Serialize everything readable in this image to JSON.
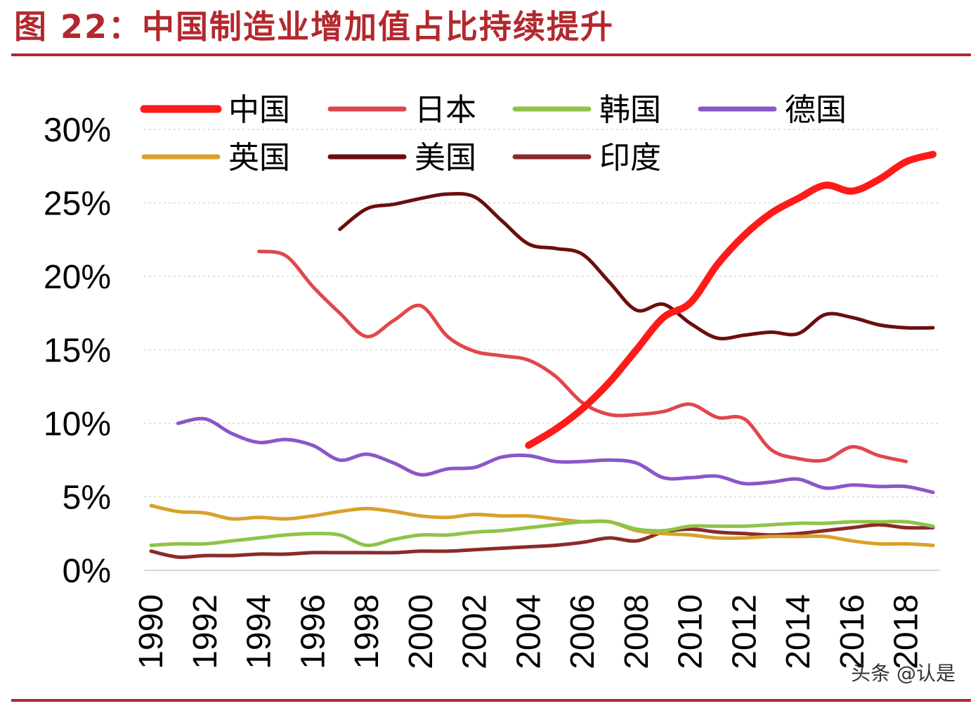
{
  "title": "图 22：中国制造业增加值占比持续提升",
  "watermark": "头条 @认是",
  "colors": {
    "title": "#b3282e",
    "rule": "#b3282e",
    "grid": "#d9d9d9",
    "axis": "#d9d9d9"
  },
  "chart_data": {
    "type": "line",
    "x_ticks": [
      "1990",
      "1992",
      "1994",
      "1996",
      "1998",
      "2000",
      "2002",
      "2004",
      "2006",
      "2008",
      "2010",
      "2012",
      "2014",
      "2016",
      "2018"
    ],
    "y_ticks": [
      "0%",
      "5%",
      "10%",
      "15%",
      "20%",
      "25%",
      "30%"
    ],
    "ylim": [
      0,
      30
    ],
    "xlim": [
      1990,
      2019
    ],
    "grid": "horizontal dotted",
    "legend_placement": "top",
    "series": [
      {
        "name": "中国",
        "color": "#ff1a1a",
        "width": 10,
        "x": [
          2004,
          2005,
          2006,
          2007,
          2008,
          2009,
          2010,
          2011,
          2012,
          2013,
          2014,
          2015,
          2016,
          2017,
          2018,
          2019
        ],
        "y": [
          8.5,
          9.6,
          11.0,
          12.8,
          15.0,
          17.2,
          18.2,
          20.8,
          22.8,
          24.3,
          25.3,
          26.2,
          25.8,
          26.6,
          27.8,
          28.3
        ]
      },
      {
        "name": "日本",
        "color": "#e0474c",
        "width": 5,
        "x": [
          1994,
          1995,
          1996,
          1997,
          1998,
          1999,
          2000,
          2001,
          2002,
          2003,
          2004,
          2005,
          2006,
          2007,
          2008,
          2009,
          2010,
          2011,
          2012,
          2013,
          2014,
          2015,
          2016,
          2017,
          2018
        ],
        "y": [
          21.7,
          21.4,
          19.3,
          17.5,
          15.9,
          17.0,
          18.0,
          15.9,
          14.9,
          14.6,
          14.3,
          13.2,
          11.4,
          10.6,
          10.6,
          10.8,
          11.3,
          10.4,
          10.3,
          8.2,
          7.6,
          7.5,
          8.4,
          7.8,
          7.4
        ]
      },
      {
        "name": "韩国",
        "color": "#8fc34a",
        "width": 5,
        "x": [
          1990,
          1991,
          1992,
          1993,
          1994,
          1995,
          1996,
          1997,
          1998,
          1999,
          2000,
          2001,
          2002,
          2003,
          2004,
          2005,
          2006,
          2007,
          2008,
          2009,
          2010,
          2011,
          2012,
          2013,
          2014,
          2015,
          2016,
          2017,
          2018,
          2019
        ],
        "y": [
          1.7,
          1.8,
          1.8,
          2.0,
          2.2,
          2.4,
          2.5,
          2.4,
          1.7,
          2.1,
          2.4,
          2.4,
          2.6,
          2.7,
          2.9,
          3.1,
          3.3,
          3.3,
          2.8,
          2.7,
          3.0,
          3.0,
          3.0,
          3.1,
          3.2,
          3.2,
          3.3,
          3.3,
          3.3,
          3.0
        ]
      },
      {
        "name": "德国",
        "color": "#8a56c8",
        "width": 5,
        "x": [
          1991,
          1992,
          1993,
          1994,
          1995,
          1996,
          1997,
          1998,
          1999,
          2000,
          2001,
          2002,
          2003,
          2004,
          2005,
          2006,
          2007,
          2008,
          2009,
          2010,
          2011,
          2012,
          2013,
          2014,
          2015,
          2016,
          2017,
          2018,
          2019
        ],
        "y": [
          10.0,
          10.3,
          9.3,
          8.7,
          8.9,
          8.5,
          7.5,
          7.9,
          7.3,
          6.5,
          6.9,
          7.0,
          7.7,
          7.8,
          7.4,
          7.4,
          7.5,
          7.3,
          6.3,
          6.3,
          6.4,
          5.9,
          6.0,
          6.2,
          5.6,
          5.8,
          5.7,
          5.7,
          5.3
        ]
      },
      {
        "name": "英国",
        "color": "#d9a12a",
        "width": 5,
        "x": [
          1990,
          1991,
          1992,
          1993,
          1994,
          1995,
          1996,
          1997,
          1998,
          1999,
          2000,
          2001,
          2002,
          2003,
          2004,
          2005,
          2006,
          2007,
          2008,
          2009,
          2010,
          2011,
          2012,
          2013,
          2014,
          2015,
          2016,
          2017,
          2018,
          2019
        ],
        "y": [
          4.4,
          4.0,
          3.9,
          3.5,
          3.6,
          3.5,
          3.7,
          4.0,
          4.2,
          4.0,
          3.7,
          3.6,
          3.8,
          3.7,
          3.7,
          3.5,
          3.3,
          3.3,
          2.7,
          2.5,
          2.4,
          2.2,
          2.2,
          2.3,
          2.3,
          2.3,
          2.0,
          1.8,
          1.8,
          1.7
        ]
      },
      {
        "name": "美国",
        "color": "#6b0e0e",
        "width": 5,
        "x": [
          1997,
          1998,
          1999,
          2000,
          2001,
          2002,
          2003,
          2004,
          2005,
          2006,
          2007,
          2008,
          2009,
          2010,
          2011,
          2012,
          2013,
          2014,
          2015,
          2016,
          2017,
          2018,
          2019
        ],
        "y": [
          23.2,
          24.6,
          24.9,
          25.3,
          25.6,
          25.4,
          23.8,
          22.2,
          21.9,
          21.5,
          19.6,
          17.7,
          18.1,
          16.8,
          15.8,
          16.0,
          16.2,
          16.1,
          17.4,
          17.2,
          16.7,
          16.5,
          16.5
        ]
      },
      {
        "name": "印度",
        "color": "#8b2a2a",
        "width": 5,
        "x": [
          1990,
          1991,
          1992,
          1993,
          1994,
          1995,
          1996,
          1997,
          1998,
          1999,
          2000,
          2001,
          2002,
          2003,
          2004,
          2005,
          2006,
          2007,
          2008,
          2009,
          2010,
          2011,
          2012,
          2013,
          2014,
          2015,
          2016,
          2017,
          2018,
          2019
        ],
        "y": [
          1.3,
          0.9,
          1.0,
          1.0,
          1.1,
          1.1,
          1.2,
          1.2,
          1.2,
          1.2,
          1.3,
          1.3,
          1.4,
          1.5,
          1.6,
          1.7,
          1.9,
          2.2,
          2.0,
          2.6,
          2.8,
          2.6,
          2.5,
          2.4,
          2.5,
          2.7,
          2.9,
          3.1,
          2.9,
          2.9
        ]
      }
    ]
  }
}
